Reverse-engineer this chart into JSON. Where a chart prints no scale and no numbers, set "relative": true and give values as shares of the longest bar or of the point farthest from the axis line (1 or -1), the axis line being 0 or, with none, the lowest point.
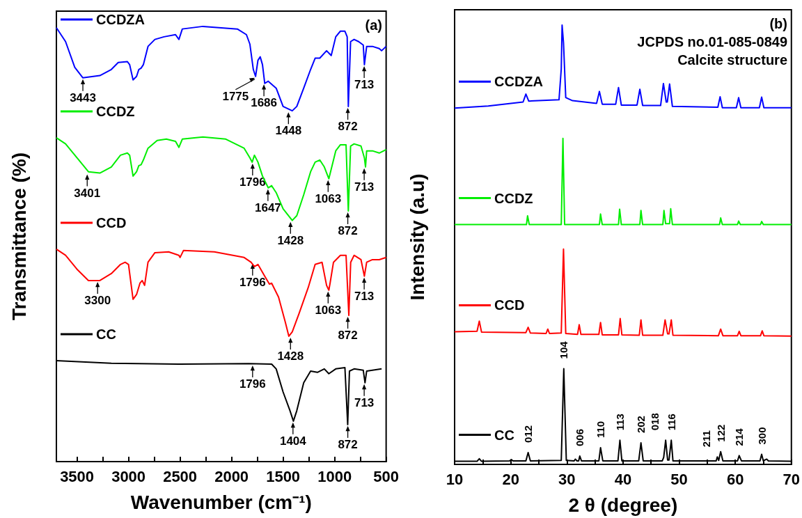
{
  "chart_data": [
    {
      "type": "line",
      "relative": true,
      "xlabel": "Wavenumber (cm⁻¹)",
      "ylabel": "Transmittance (%)",
      "xlim": [
        3700,
        500
      ],
      "xticks": [
        3500,
        {
          "value": 3250,
          "label": null
        },
        3000,
        {
          "value": 2750,
          "label": null
        },
        2500,
        {
          "value": 2250,
          "label": null
        },
        2000,
        {
          "value": 1750,
          "label": null
        },
        1500,
        {
          "value": 1250,
          "label": null
        },
        1000,
        {
          "value": 750,
          "label": null
        },
        500
      ],
      "legend": "left",
      "marker": "none",
      "line_style": "solid",
      "series": [
        {
          "name": "CCDZA",
          "color": "#0000ff",
          "x": [
            3700,
            3611,
            3522,
            3444,
            3278,
            3167,
            3100,
            3011,
            2989,
            2956,
            2922,
            2900,
            2878,
            2856,
            2811,
            2744,
            2656,
            2544,
            2511,
            2478,
            2278,
            1944,
            1856,
            1822,
            1789,
            1767,
            1744,
            1722,
            1700,
            1678,
            1644,
            1567,
            1500,
            1411,
            1367,
            1300,
            1233,
            1189,
            1144,
            1078,
            1033,
            989,
            944,
            900,
            878,
            867,
            845,
            811,
            767,
            722,
            711,
            689,
            633,
            567,
            544,
            500
          ],
          "values": [
            0.997,
            0.965,
            0.906,
            0.882,
            0.887,
            0.901,
            0.917,
            0.919,
            0.912,
            0.877,
            0.885,
            0.901,
            0.904,
            0.912,
            0.954,
            0.97,
            0.976,
            0.981,
            0.97,
            0.994,
            1,
            0.994,
            0.981,
            0.959,
            0.901,
            0.885,
            0.922,
            0.93,
            0.912,
            0.869,
            0.874,
            0.858,
            0.816,
            0.806,
            0.816,
            0.858,
            0.901,
            0.927,
            0.927,
            0.944,
            0.933,
            0.976,
            0.989,
            0.989,
            0.976,
            0.816,
            0.965,
            0.97,
            0.965,
            0.957,
            0.912,
            0.954,
            0.954,
            0.949,
            0.944,
            0.954
          ]
        },
        {
          "name": "CCDZ",
          "color": "#00ee00",
          "x": [
            3700,
            3611,
            3500,
            3389,
            3278,
            3167,
            3078,
            3011,
            2989,
            2956,
            2922,
            2900,
            2878,
            2856,
            2811,
            2722,
            2633,
            2544,
            2511,
            2478,
            2278,
            2056,
            1878,
            1822,
            1800,
            1778,
            1744,
            1700,
            1644,
            1611,
            1567,
            1500,
            1411,
            1367,
            1300,
            1233,
            1189,
            1144,
            1100,
            1056,
            1033,
            989,
            944,
            889,
            867,
            845,
            811,
            744,
            711,
            700,
            689,
            633,
            567,
            500
          ],
          "values": [
            0.744,
            0.73,
            0.698,
            0.666,
            0.663,
            0.677,
            0.704,
            0.709,
            0.704,
            0.656,
            0.666,
            0.68,
            0.682,
            0.693,
            0.72,
            0.738,
            0.741,
            0.736,
            0.722,
            0.741,
            0.746,
            0.741,
            0.72,
            0.698,
            0.688,
            0.704,
            0.688,
            0.656,
            0.629,
            0.634,
            0.618,
            0.581,
            0.554,
            0.565,
            0.613,
            0.666,
            0.688,
            0.693,
            0.677,
            0.65,
            0.672,
            0.714,
            0.728,
            0.728,
            0.576,
            0.725,
            0.73,
            0.725,
            0.698,
            0.677,
            0.714,
            0.714,
            0.709,
            0.717
          ]
        },
        {
          "name": "CCD",
          "color": "#ff0000",
          "x": [
            3700,
            3611,
            3500,
            3389,
            3278,
            3167,
            3078,
            3033,
            3000,
            2956,
            2922,
            2889,
            2867,
            2844,
            2811,
            2744,
            2611,
            2511,
            2500,
            2467,
            2167,
            1878,
            1811,
            1778,
            1744,
            1678,
            1633,
            1611,
            1544,
            1478,
            1444,
            1411,
            1344,
            1256,
            1189,
            1122,
            1078,
            1056,
            1044,
            1011,
            944,
            889,
            862,
            844,
            811,
            744,
            711,
            689,
            633,
            567,
            500
          ],
          "values": [
            0.488,
            0.474,
            0.442,
            0.416,
            0.416,
            0.432,
            0.453,
            0.458,
            0.453,
            0.373,
            0.384,
            0.41,
            0.416,
            0.405,
            0.458,
            0.48,
            0.482,
            0.474,
            0.469,
            0.485,
            0.482,
            0.469,
            0.458,
            0.448,
            0.453,
            0.426,
            0.408,
            0.41,
            0.378,
            0.32,
            0.288,
            0.298,
            0.341,
            0.4,
            0.453,
            0.458,
            0.405,
            0.394,
            0.41,
            0.458,
            0.474,
            0.474,
            0.336,
            0.458,
            0.474,
            0.464,
            0.426,
            0.458,
            0.464,
            0.464,
            0.469
          ]
        },
        {
          "name": "CC",
          "color": "#000000",
          "x": [
            3700,
            3167,
            2500,
            1833,
            1611,
            1567,
            1500,
            1433,
            1400,
            1367,
            1300,
            1233,
            1167,
            1100,
            1056,
            989,
            900,
            873,
            856,
            811,
            722,
            705,
            689,
            544
          ],
          "values": [
            0.232,
            0.226,
            0.224,
            0.225,
            0.224,
            0.213,
            0.16,
            0.117,
            0.093,
            0.117,
            0.181,
            0.208,
            0.205,
            0.213,
            0.202,
            0.213,
            0.216,
            0.085,
            0.208,
            0.213,
            0.21,
            0.181,
            0.208,
            0.213
          ]
        }
      ],
      "annotations": [
        "(a)",
        {
          "text": "3443",
          "x": 3443,
          "y": 0.882
        },
        {
          "text": "1775",
          "x": 1775,
          "y": 0.885
        },
        {
          "text": "1686",
          "x": 1686,
          "y": 0.87
        },
        {
          "text": "1448",
          "x": 1448,
          "y": 0.806
        },
        {
          "text": "872",
          "x": 872,
          "y": 0.816
        },
        {
          "text": "713",
          "x": 713,
          "y": 0.912
        },
        {
          "text": "3401",
          "x": 3401,
          "y": 0.663
        },
        {
          "text": "1796",
          "x": 1796,
          "y": 0.688
        },
        {
          "text": "1647",
          "x": 1647,
          "y": 0.629
        },
        {
          "text": "1428",
          "x": 1428,
          "y": 0.554
        },
        {
          "text": "1063",
          "x": 1063,
          "y": 0.65
        },
        {
          "text": "872",
          "x": 872,
          "y": 0.576
        },
        {
          "text": "713",
          "x": 713,
          "y": 0.677
        },
        {
          "text": "3300",
          "x": 3300,
          "y": 0.416
        },
        {
          "text": "1796",
          "x": 1796,
          "y": 0.458
        },
        {
          "text": "1428",
          "x": 1428,
          "y": 0.288
        },
        {
          "text": "1063",
          "x": 1063,
          "y": 0.394
        },
        {
          "text": "872",
          "x": 872,
          "y": 0.336
        },
        {
          "text": "713",
          "x": 713,
          "y": 0.426
        },
        {
          "text": "1796",
          "x": 1796,
          "y": 0.224
        },
        {
          "text": "1404",
          "x": 1404,
          "y": 0.093
        },
        {
          "text": "872",
          "x": 872,
          "y": 0.085
        },
        {
          "text": "713",
          "x": 713,
          "y": 0.181
        }
      ]
    },
    {
      "type": "line",
      "relative": true,
      "xlabel": "2 θ (degree)",
      "ylabel": "Intensity (a.u)",
      "xlim": [
        10,
        70
      ],
      "xticks": [
        10,
        {
          "value": 15,
          "label": null
        },
        20,
        {
          "value": 25,
          "label": null
        },
        30,
        {
          "value": 35,
          "label": null
        },
        40,
        {
          "value": 45,
          "label": null
        },
        50,
        {
          "value": 55,
          "label": null
        },
        60,
        {
          "value": 65,
          "label": null
        },
        70
      ],
      "legend": "left",
      "marker": "none",
      "line_style": "solid",
      "series": [
        {
          "name": "CCDZA",
          "color": "#0000ff",
          "x": [
            10,
            16,
            22.2,
            22.7,
            23.2,
            28.6,
            29,
            29.15,
            29.4,
            29.8,
            31,
            35.3,
            35.8,
            36.3,
            38.7,
            39.2,
            39.7,
            42.5,
            43,
            43.5,
            46.7,
            47.2,
            47.7,
            47.9,
            48.3,
            48.8,
            56.9,
            57.3,
            57.7,
            60.2,
            60.6,
            61,
            64.3,
            64.7,
            65.1,
            70
          ],
          "values": [
            0.811,
            0.816,
            0.825,
            0.843,
            0.827,
            0.83,
            0.9,
            1,
            0.96,
            0.835,
            0.828,
            0.822,
            0.849,
            0.82,
            0.82,
            0.858,
            0.818,
            0.818,
            0.854,
            0.817,
            0.817,
            0.867,
            0.825,
            0.825,
            0.866,
            0.815,
            0.813,
            0.837,
            0.812,
            0.812,
            0.835,
            0.812,
            0.812,
            0.836,
            0.812,
            0.812
          ]
        },
        {
          "name": "CCDZ",
          "color": "#00ee00",
          "x": [
            10,
            22.8,
            23,
            23.3,
            29,
            29.3,
            29.6,
            35.8,
            36,
            36.3,
            39.2,
            39.4,
            39.7,
            43,
            43.2,
            43.5,
            47.1,
            47.3,
            47.6,
            48.3,
            48.5,
            48.8,
            57.2,
            57.4,
            57.7,
            60.4,
            60.6,
            60.9,
            64.5,
            64.7,
            65,
            70
          ],
          "values": [
            0.546,
            0.546,
            0.566,
            0.546,
            0.546,
            0.742,
            0.546,
            0.546,
            0.57,
            0.546,
            0.546,
            0.581,
            0.546,
            0.546,
            0.578,
            0.546,
            0.546,
            0.578,
            0.548,
            0.548,
            0.582,
            0.546,
            0.546,
            0.561,
            0.546,
            0.546,
            0.554,
            0.546,
            0.546,
            0.553,
            0.546,
            0.546
          ]
        },
        {
          "name": "CCD",
          "color": "#ff0000",
          "x": [
            10,
            14,
            14.4,
            14.8,
            22.7,
            23.1,
            23.5,
            26.3,
            26.6,
            26.9,
            29,
            29.4,
            29.8,
            31.9,
            32.2,
            32.5,
            35.7,
            36,
            36.3,
            39.2,
            39.5,
            39.8,
            42.9,
            43.2,
            43.5,
            47.1,
            47.5,
            47.95,
            48.2,
            48.6,
            48.9,
            57,
            57.4,
            57.8,
            60.4,
            60.7,
            61,
            64.5,
            64.8,
            65.1,
            70
          ],
          "values": [
            0.302,
            0.303,
            0.326,
            0.301,
            0.3,
            0.312,
            0.299,
            0.298,
            0.308,
            0.298,
            0.299,
            0.49,
            0.298,
            0.296,
            0.318,
            0.296,
            0.296,
            0.323,
            0.295,
            0.295,
            0.332,
            0.295,
            0.294,
            0.329,
            0.294,
            0.294,
            0.329,
            0.297,
            0.297,
            0.329,
            0.294,
            0.293,
            0.308,
            0.293,
            0.293,
            0.303,
            0.293,
            0.293,
            0.304,
            0.293,
            0.292
          ]
        },
        {
          "name": "CC",
          "color": "#000000",
          "x": [
            10,
            14,
            14.4,
            14.8,
            19.8,
            20.1,
            20.4,
            22.7,
            23.1,
            23.5,
            29,
            29.45,
            29.9,
            31.3,
            31.5,
            31.8,
            32.1,
            32.3,
            32.6,
            35.7,
            36,
            36.4,
            39.1,
            39.45,
            39.8,
            42.8,
            43.2,
            43.6,
            47,
            47.25,
            47.6,
            47.95,
            48.2,
            48.6,
            48.9,
            56.6,
            56.8,
            57.05,
            57.4,
            57.8,
            60.4,
            60.7,
            61.1,
            64.4,
            64.7,
            65,
            65.6,
            65.9,
            70
          ],
          "values": [
            0.007,
            0.007,
            0.013,
            0.007,
            0.008,
            0.011,
            0.008,
            0.008,
            0.027,
            0.008,
            0.009,
            0.218,
            0.009,
            0.008,
            0.012,
            0.008,
            0.008,
            0.019,
            0.008,
            0.008,
            0.038,
            0.008,
            0.008,
            0.055,
            0.008,
            0.008,
            0.049,
            0.008,
            0.008,
            0.016,
            0.055,
            0.01,
            0.01,
            0.055,
            0.008,
            0.008,
            0.017,
            0.009,
            0.029,
            0.008,
            0.008,
            0.02,
            0.008,
            0.008,
            0.023,
            0.008,
            0.012,
            0.008,
            0.007
          ]
        }
      ],
      "annotations": [
        "(b)",
        "JCPDS no.01-085-0849",
        "Calcite structure",
        {
          "text": "012",
          "x": 23.1,
          "y": 0.027
        },
        {
          "text": "104",
          "x": 29.45,
          "y": 0.218
        },
        {
          "text": "006",
          "x": 32.3,
          "y": 0.019
        },
        {
          "text": "110",
          "x": 36,
          "y": 0.038
        },
        {
          "text": "113",
          "x": 39.45,
          "y": 0.055
        },
        {
          "text": "202",
          "x": 43.2,
          "y": 0.049
        },
        {
          "text": "018",
          "x": 47.6,
          "y": 0.055
        },
        {
          "text": "116",
          "x": 48.6,
          "y": 0.055
        },
        {
          "text": "211",
          "x": 56.8,
          "y": 0.017
        },
        {
          "text": "122",
          "x": 57.4,
          "y": 0.029
        },
        {
          "text": "214",
          "x": 60.7,
          "y": 0.02
        },
        {
          "text": "300",
          "x": 64.7,
          "y": 0.023
        }
      ]
    }
  ]
}
